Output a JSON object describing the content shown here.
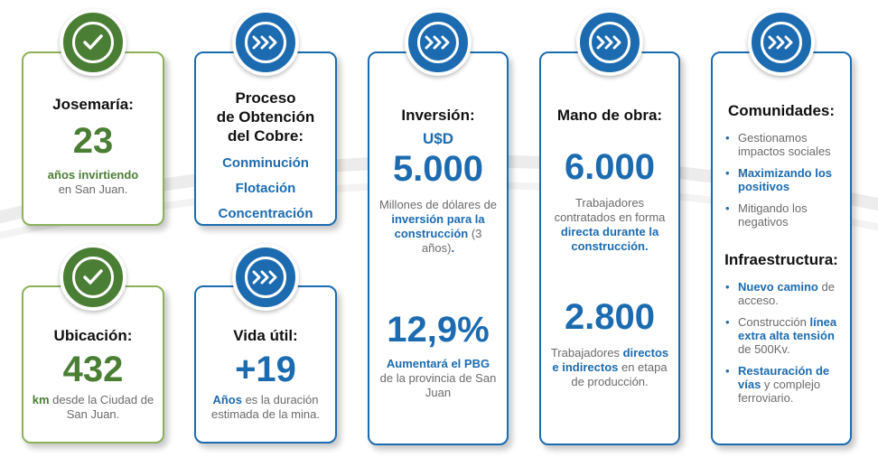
{
  "colors": {
    "green": "#4a7e34",
    "green_border": "#8bb25a",
    "blue": "#1c6bb0"
  },
  "cards": {
    "josemaria": {
      "icon": "check-icon",
      "title": "Josemaría:",
      "value": "23",
      "desc_bold": "años invirtiendo",
      "desc": "en San Juan."
    },
    "ubicacion": {
      "icon": "check-icon",
      "title": "Ubicación:",
      "value": "432",
      "desc_bold": "km",
      "desc": " desde la Ciudad de San Juan."
    },
    "proceso": {
      "icon": "chevrons-icon",
      "title_lines": [
        "Proceso",
        "de Obtención",
        "del Cobre:"
      ],
      "steps": [
        "Conminución",
        "Flotación",
        "Concentración"
      ]
    },
    "vida_util": {
      "icon": "chevrons-icon",
      "title": "Vida útil:",
      "value": "+19",
      "desc_bold": "Años",
      "desc": " es la duración estimada de la mina."
    },
    "inversion": {
      "icon": "chevrons-icon",
      "title": "Inversión:",
      "currency": "U$D",
      "value": "5.000",
      "desc_pre": "Millones de dólares de ",
      "desc_bold": "inversión para la construcción",
      "desc_post": " (3 años)",
      "desc_end": ".",
      "value2": "12,9%",
      "desc2_bold": "Aumentará el PBG",
      "desc2": "de la provincia de San Juan"
    },
    "mano_obra": {
      "icon": "chevrons-icon",
      "title": "Mano de obra:",
      "value": "6.000",
      "desc_pre": "Trabajadores contratados en forma ",
      "desc_bold": "directa durante la construcción.",
      "value2": "2.800",
      "desc2_pre": "Trabajadores ",
      "desc2_bold": "directos e indirectos",
      "desc2_post": " en etapa de producción."
    },
    "comunidades": {
      "icon": "chevrons-icon",
      "title": "Comunidades:",
      "items": [
        {
          "text": "Gestionamos impactos sociales"
        },
        {
          "bold": "Maximizando los positivos"
        },
        {
          "text": "Mitigando los negativos"
        }
      ],
      "title2": "Infraestructura:",
      "items2": [
        {
          "bold": "Nuevo camino",
          "text": " de acceso."
        },
        {
          "text": "Construcción ",
          "bold": "línea extra alta tensión",
          "text2": " de 500Kv."
        },
        {
          "bold": "Restauración de vías",
          "text": " y complejo ferroviario."
        }
      ]
    }
  }
}
